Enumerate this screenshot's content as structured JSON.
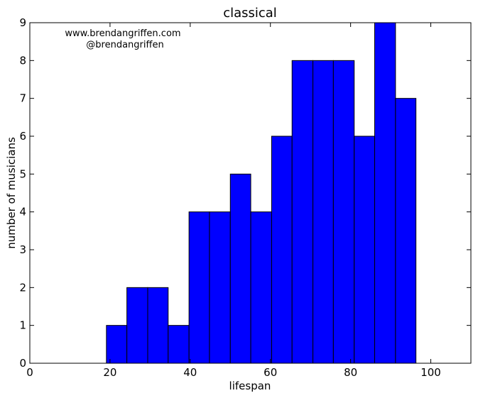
{
  "chart_data": {
    "type": "bar",
    "title": "classical",
    "xlabel": "lifespan",
    "ylabel": "number of musicians",
    "xlim": [
      0,
      110
    ],
    "ylim": [
      0,
      9
    ],
    "xticks": [
      "0",
      "20",
      "40",
      "60",
      "80",
      "100"
    ],
    "yticks": [
      "0",
      "1",
      "2",
      "3",
      "4",
      "5",
      "6",
      "7",
      "8",
      "9"
    ],
    "grid": false,
    "bar_color": "#0000ff",
    "edge_color": "#000000",
    "bins": [
      {
        "x0": 19.1,
        "x1": 24.2,
        "count": 1
      },
      {
        "x0": 24.2,
        "x1": 29.4,
        "count": 2
      },
      {
        "x0": 29.4,
        "x1": 34.5,
        "count": 2
      },
      {
        "x0": 34.5,
        "x1": 39.7,
        "count": 1
      },
      {
        "x0": 39.7,
        "x1": 44.8,
        "count": 4
      },
      {
        "x0": 44.8,
        "x1": 50.0,
        "count": 4
      },
      {
        "x0": 50.0,
        "x1": 55.1,
        "count": 5
      },
      {
        "x0": 55.1,
        "x1": 60.3,
        "count": 4
      },
      {
        "x0": 60.3,
        "x1": 65.4,
        "count": 6
      },
      {
        "x0": 65.4,
        "x1": 70.6,
        "count": 8
      },
      {
        "x0": 70.6,
        "x1": 75.7,
        "count": 8
      },
      {
        "x0": 75.7,
        "x1": 80.9,
        "count": 8
      },
      {
        "x0": 80.9,
        "x1": 86.0,
        "count": 6
      },
      {
        "x0": 86.0,
        "x1": 91.2,
        "count": 9
      },
      {
        "x0": 91.2,
        "x1": 96.3,
        "count": 7
      }
    ],
    "annotation": [
      "www.brendangriffen.com",
      "@brendangriffen"
    ]
  }
}
